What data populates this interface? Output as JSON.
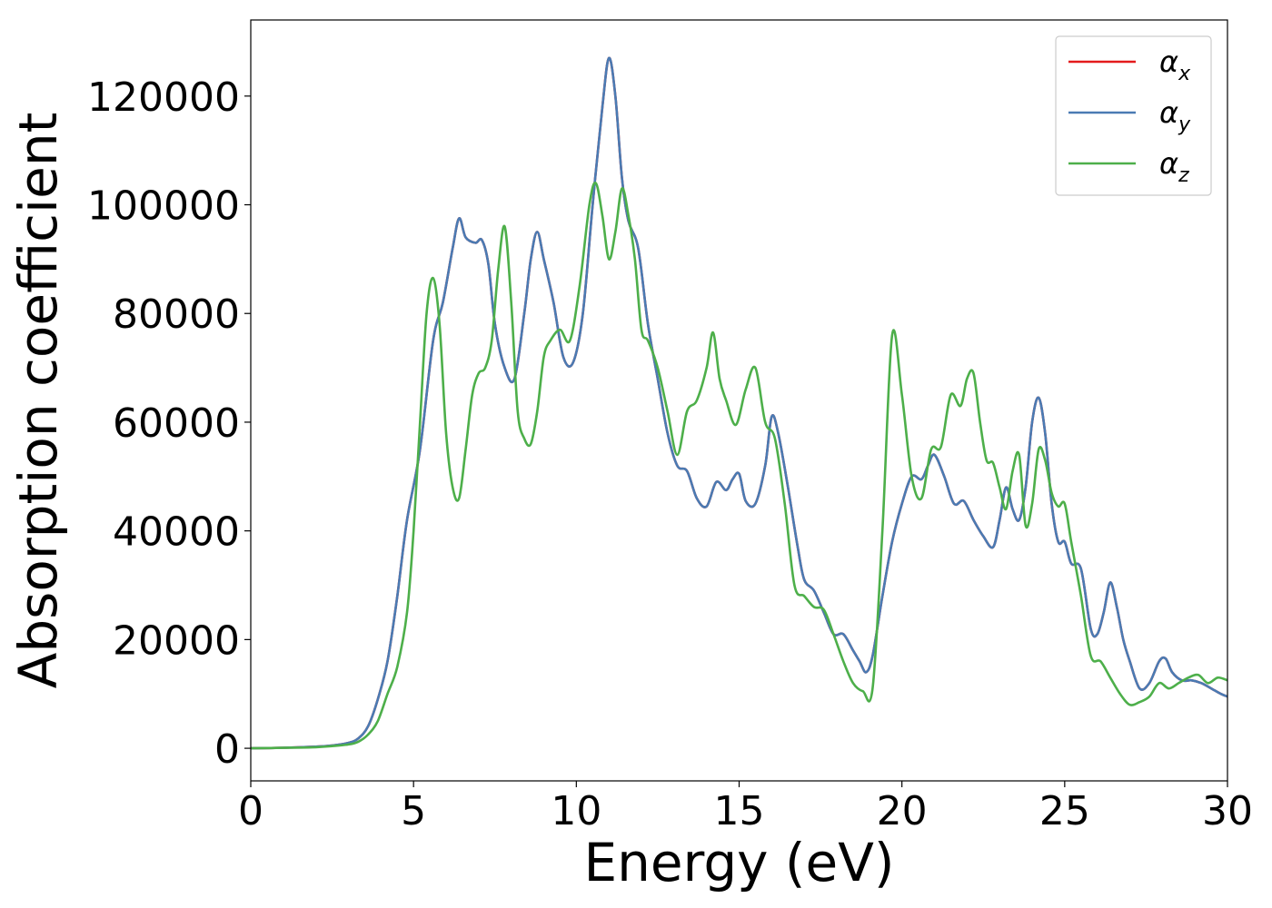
{
  "chart_data": {
    "type": "line",
    "title": "",
    "xlabel": "Energy (eV)",
    "ylabel": "Absorption coefficient",
    "xlim": [
      0,
      30
    ],
    "ylim": [
      -6000,
      134000
    ],
    "xticks": [
      0,
      5,
      10,
      15,
      20,
      25,
      30
    ],
    "yticks": [
      0,
      20000,
      40000,
      60000,
      80000,
      100000,
      120000
    ],
    "grid": false,
    "legend_position": "top-right",
    "series": [
      {
        "name": "α_x",
        "symbol": "α",
        "subscript": "x",
        "color": "#e41a1c",
        "x": [
          0,
          1,
          2,
          2.5,
          3,
          3.3,
          3.6,
          3.9,
          4.2,
          4.5,
          4.8,
          5.2,
          5.6,
          5.9,
          6.2,
          6.4,
          6.6,
          6.9,
          7.1,
          7.3,
          7.5,
          7.8,
          8.1,
          8.4,
          8.6,
          8.8,
          9.0,
          9.3,
          9.6,
          9.9,
          10.2,
          10.5,
          10.8,
          11.0,
          11.2,
          11.4,
          11.6,
          11.9,
          12.2,
          12.5,
          12.8,
          13.1,
          13.4,
          13.7,
          14.0,
          14.3,
          14.6,
          14.8,
          15.0,
          15.2,
          15.5,
          15.8,
          16.0,
          16.2,
          16.5,
          16.8,
          17.0,
          17.3,
          17.6,
          17.9,
          18.2,
          18.5,
          18.7,
          18.9,
          19.1,
          19.4,
          19.7,
          20.0,
          20.3,
          20.6,
          20.8,
          21.0,
          21.3,
          21.6,
          21.9,
          22.2,
          22.5,
          22.8,
          23.0,
          23.2,
          23.4,
          23.6,
          23.8,
          24.0,
          24.2,
          24.4,
          24.6,
          24.8,
          25.0,
          25.2,
          25.5,
          25.8,
          26.0,
          26.2,
          26.4,
          26.6,
          26.8,
          27.0,
          27.3,
          27.6,
          27.9,
          28.1,
          28.3,
          28.6,
          28.9,
          29.2,
          29.5,
          29.8,
          30.0
        ],
        "y": [
          0,
          100,
          300,
          500,
          1000,
          1800,
          4000,
          9000,
          16000,
          28000,
          42000,
          55000,
          75000,
          82000,
          92000,
          97500,
          94000,
          93000,
          93500,
          89000,
          78000,
          70000,
          68000,
          80000,
          90000,
          95000,
          90000,
          82000,
          72000,
          71000,
          80000,
          100000,
          118000,
          127000,
          120000,
          105000,
          97000,
          92000,
          78000,
          68000,
          58000,
          52000,
          51000,
          46000,
          44500,
          49000,
          47500,
          49500,
          50500,
          45500,
          45000,
          52000,
          61000,
          58000,
          48000,
          37000,
          31000,
          29000,
          25000,
          21000,
          21000,
          18000,
          16000,
          14000,
          17000,
          28000,
          38000,
          45000,
          50000,
          49500,
          52000,
          54000,
          50000,
          45000,
          45500,
          42000,
          39000,
          37000,
          42000,
          48000,
          44000,
          42000,
          48000,
          60000,
          64500,
          58000,
          45000,
          38000,
          38000,
          34000,
          33000,
          22000,
          21000,
          25000,
          30500,
          26000,
          20000,
          16000,
          11000,
          12000,
          16000,
          16500,
          14000,
          12500,
          12500,
          12000,
          11000,
          10000,
          9500
        ]
      },
      {
        "name": "α_y",
        "symbol": "α",
        "subscript": "y",
        "color": "#4a7bb3",
        "x": [
          0,
          1,
          2,
          2.5,
          3,
          3.3,
          3.6,
          3.9,
          4.2,
          4.5,
          4.8,
          5.2,
          5.6,
          5.9,
          6.2,
          6.4,
          6.6,
          6.9,
          7.1,
          7.3,
          7.5,
          7.8,
          8.1,
          8.4,
          8.6,
          8.8,
          9.0,
          9.3,
          9.6,
          9.9,
          10.2,
          10.5,
          10.8,
          11.0,
          11.2,
          11.4,
          11.6,
          11.9,
          12.2,
          12.5,
          12.8,
          13.1,
          13.4,
          13.7,
          14.0,
          14.3,
          14.6,
          14.8,
          15.0,
          15.2,
          15.5,
          15.8,
          16.0,
          16.2,
          16.5,
          16.8,
          17.0,
          17.3,
          17.6,
          17.9,
          18.2,
          18.5,
          18.7,
          18.9,
          19.1,
          19.4,
          19.7,
          20.0,
          20.3,
          20.6,
          20.8,
          21.0,
          21.3,
          21.6,
          21.9,
          22.2,
          22.5,
          22.8,
          23.0,
          23.2,
          23.4,
          23.6,
          23.8,
          24.0,
          24.2,
          24.4,
          24.6,
          24.8,
          25.0,
          25.2,
          25.5,
          25.8,
          26.0,
          26.2,
          26.4,
          26.6,
          26.8,
          27.0,
          27.3,
          27.6,
          27.9,
          28.1,
          28.3,
          28.6,
          28.9,
          29.2,
          29.5,
          29.8,
          30.0
        ],
        "y": [
          0,
          100,
          300,
          500,
          1000,
          1800,
          4000,
          9000,
          16000,
          28000,
          42000,
          55000,
          75000,
          82000,
          92000,
          97500,
          94000,
          93000,
          93500,
          89000,
          78000,
          70000,
          68000,
          80000,
          90000,
          95000,
          90000,
          82000,
          72000,
          71000,
          80000,
          100000,
          118000,
          127000,
          120000,
          105000,
          97000,
          92000,
          78000,
          68000,
          58000,
          52000,
          51000,
          46000,
          44500,
          49000,
          47500,
          49500,
          50500,
          45500,
          45000,
          52000,
          61000,
          58000,
          48000,
          37000,
          31000,
          29000,
          25000,
          21000,
          21000,
          18000,
          16000,
          14000,
          17000,
          28000,
          38000,
          45000,
          50000,
          49500,
          52000,
          54000,
          50000,
          45000,
          45500,
          42000,
          39000,
          37000,
          42000,
          48000,
          44000,
          42000,
          48000,
          60000,
          64500,
          58000,
          45000,
          38000,
          38000,
          34000,
          33000,
          22000,
          21000,
          25000,
          30500,
          26000,
          20000,
          16000,
          11000,
          12000,
          16000,
          16500,
          14000,
          12500,
          12500,
          12000,
          11000,
          10000,
          9500
        ]
      },
      {
        "name": "α_z",
        "symbol": "α",
        "subscript": "z",
        "color": "#4daf4a",
        "x": [
          0,
          1,
          2,
          2.5,
          3,
          3.3,
          3.6,
          3.9,
          4.2,
          4.5,
          4.8,
          5.0,
          5.2,
          5.4,
          5.6,
          5.8,
          6.0,
          6.2,
          6.4,
          6.6,
          6.8,
          7.0,
          7.2,
          7.4,
          7.6,
          7.8,
          8.0,
          8.2,
          8.4,
          8.6,
          8.8,
          9.0,
          9.2,
          9.5,
          9.8,
          10.1,
          10.4,
          10.6,
          10.8,
          11.0,
          11.2,
          11.4,
          11.6,
          11.8,
          12.0,
          12.2,
          12.5,
          12.8,
          13.1,
          13.4,
          13.7,
          14.0,
          14.2,
          14.4,
          14.6,
          14.9,
          15.2,
          15.5,
          15.8,
          16.1,
          16.4,
          16.7,
          17.0,
          17.3,
          17.6,
          17.9,
          18.2,
          18.5,
          18.8,
          19.1,
          19.4,
          19.7,
          20.0,
          20.3,
          20.6,
          20.9,
          21.2,
          21.5,
          21.8,
          22.0,
          22.2,
          22.4,
          22.6,
          22.8,
          23.0,
          23.2,
          23.4,
          23.6,
          23.8,
          24.0,
          24.2,
          24.4,
          24.6,
          24.8,
          25.0,
          25.2,
          25.5,
          25.8,
          26.1,
          26.4,
          26.7,
          27.0,
          27.3,
          27.6,
          27.9,
          28.2,
          28.5,
          28.8,
          29.1,
          29.4,
          29.7,
          30.0
        ],
        "y": [
          0,
          80,
          200,
          400,
          700,
          1200,
          2500,
          5000,
          10000,
          15000,
          25000,
          40000,
          60000,
          80000,
          86500,
          78000,
          58000,
          48000,
          46000,
          55000,
          65000,
          69000,
          70000,
          75000,
          88000,
          96000,
          82000,
          62000,
          57000,
          56000,
          62000,
          72000,
          75000,
          77000,
          75000,
          85000,
          100000,
          104000,
          98000,
          90000,
          95000,
          103000,
          98000,
          90000,
          77000,
          75000,
          70000,
          62000,
          54000,
          62000,
          64000,
          70000,
          76500,
          68000,
          64000,
          59500,
          66000,
          70000,
          60000,
          57000,
          45000,
          30000,
          28000,
          26000,
          25500,
          21000,
          16000,
          12000,
          10500,
          11000,
          40000,
          76000,
          65000,
          50000,
          46000,
          55000,
          55500,
          65000,
          63000,
          68000,
          69000,
          60000,
          53000,
          52500,
          48000,
          44000,
          51000,
          54000,
          41000,
          45000,
          55000,
          53000,
          47000,
          44500,
          45000,
          38000,
          28000,
          17000,
          16000,
          13000,
          10000,
          8000,
          8500,
          9500,
          12000,
          11000,
          12000,
          13000,
          13500,
          12000,
          13000,
          12500
        ]
      }
    ]
  }
}
